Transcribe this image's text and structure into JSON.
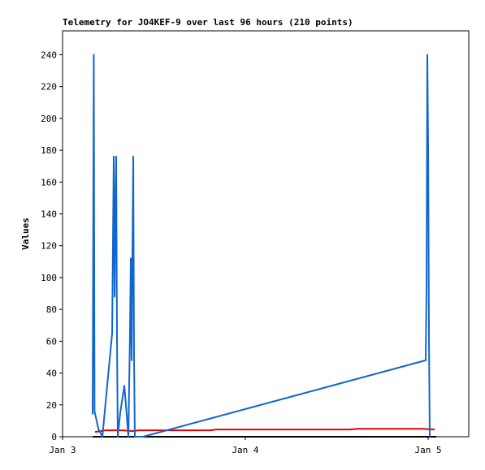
{
  "chart_data": {
    "type": "line",
    "title": "Telemetry for JO4KEF-9 over last 96 hours (210 points)",
    "y_label": "Values",
    "xlim": [
      0,
      53.33
    ],
    "xticks": [
      {
        "value": 0,
        "label": "Jan 3"
      },
      {
        "value": 24,
        "label": "Jan 4"
      },
      {
        "value": 48,
        "label": "Jan 5"
      }
    ],
    "ylim": [
      0,
      255
    ],
    "yticks": [
      0,
      20,
      40,
      60,
      80,
      100,
      120,
      140,
      160,
      180,
      200,
      220,
      240
    ],
    "grid": false,
    "series": [
      {
        "color": "#000000",
        "x": [
          3.95,
          49.07
        ],
        "values": [
          0,
          0
        ]
      },
      {
        "color": "#dd0000",
        "x": [
          4.27,
          5.65,
          7.79,
          9.39,
          9.92,
          19.52,
          20.05,
          37.65,
          38.72,
          47.25,
          48.85
        ],
        "values": [
          3,
          4,
          4,
          3.5,
          4,
          4,
          4.5,
          4.5,
          5,
          5,
          4.5
        ]
      },
      {
        "color": "#1166cc",
        "x": [
          3.95,
          4.0,
          4.1,
          4.2,
          4.7,
          5.23,
          6.51,
          6.72,
          6.83,
          6.93,
          7.04,
          7.15,
          7.25,
          7.57,
          8.11,
          8.32,
          8.64,
          8.85,
          8.96,
          9.07,
          9.17,
          9.28,
          9.39,
          9.49,
          10.56,
          47.68,
          47.79,
          47.89,
          48.0,
          48.11,
          48.21
        ],
        "values": [
          14,
          88,
          240,
          16,
          5,
          0,
          65,
          176,
          88,
          144,
          176,
          60,
          0,
          15,
          32,
          20,
          0,
          64,
          112,
          48,
          112,
          176,
          48,
          0,
          0,
          48,
          96,
          240,
          180,
          60,
          0
        ]
      }
    ]
  }
}
